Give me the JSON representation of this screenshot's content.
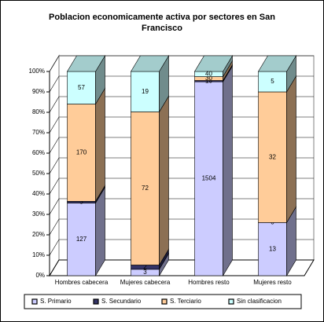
{
  "chart_data": {
    "type": "bar",
    "stacking": "percent",
    "title": "Poblacion economicamente activa por sectores en San Francisco",
    "categories": [
      "Hombres cabecera",
      "Mujeres cabecera",
      "Hombres resto",
      "Mujeres resto"
    ],
    "series": [
      {
        "name": "S. Primario",
        "color": "#ccccff",
        "values": [
          127,
          3,
          1504,
          13
        ]
      },
      {
        "name": "S. Secundario",
        "color": "#333366",
        "values": [
          3,
          2,
          10,
          0
        ]
      },
      {
        "name": "S. Terciario",
        "color": "#ffcc99",
        "values": [
          170,
          72,
          30,
          32
        ]
      },
      {
        "name": "Sin clasificacion",
        "color": "#ccffff",
        "values": [
          57,
          19,
          40,
          5
        ]
      }
    ],
    "ylim": [
      0,
      100
    ],
    "yticks": [
      {
        "value": 0,
        "label": "0%"
      },
      {
        "value": 10,
        "label": "10%"
      },
      {
        "value": 20,
        "label": "20%"
      },
      {
        "value": 30,
        "label": "30%"
      },
      {
        "value": 40,
        "label": "40%"
      },
      {
        "value": 50,
        "label": "50%"
      },
      {
        "value": 60,
        "label": "60%"
      },
      {
        "value": 70,
        "label": "70%"
      },
      {
        "value": 80,
        "label": "80%"
      },
      {
        "value": 90,
        "label": "90%"
      },
      {
        "value": 100,
        "label": "100%"
      }
    ],
    "grid": true,
    "legend": "bottom"
  }
}
